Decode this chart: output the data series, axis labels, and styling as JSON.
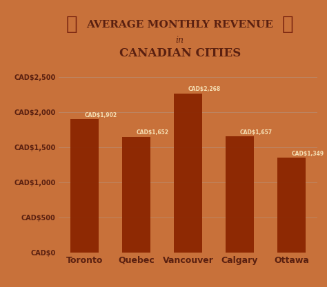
{
  "categories": [
    "Toronto",
    "Quebec",
    "Vancouver",
    "Calgary",
    "Ottawa"
  ],
  "values": [
    1902,
    1652,
    2268,
    1657,
    1349
  ],
  "bar_color": "#8B2500",
  "bar_labels": [
    "CAD$1,902",
    "CAD$1,652",
    "CAD$2,268",
    "CAD$1,657",
    "CAD$1,349"
  ],
  "title_line1": "Average Monthly Revenue",
  "title_line2": "in",
  "title_line3": "Canadian Cities",
  "yticks": [
    0,
    500,
    1000,
    1500,
    2000,
    2500
  ],
  "ytick_labels": [
    "CAD$0",
    "CAD$500",
    "CAD$1,000",
    "CAD$1,500",
    "CAD$2,000",
    "CAD$2,500"
  ],
  "ylim": [
    0,
    2700
  ],
  "bg_color": "#c8713a",
  "bar_label_color": "#f5deb3",
  "title_color": "#5a2010",
  "axis_label_color": "#5a2010",
  "grid_color": "#aaaaaa",
  "leaf_color": "#7a2510"
}
